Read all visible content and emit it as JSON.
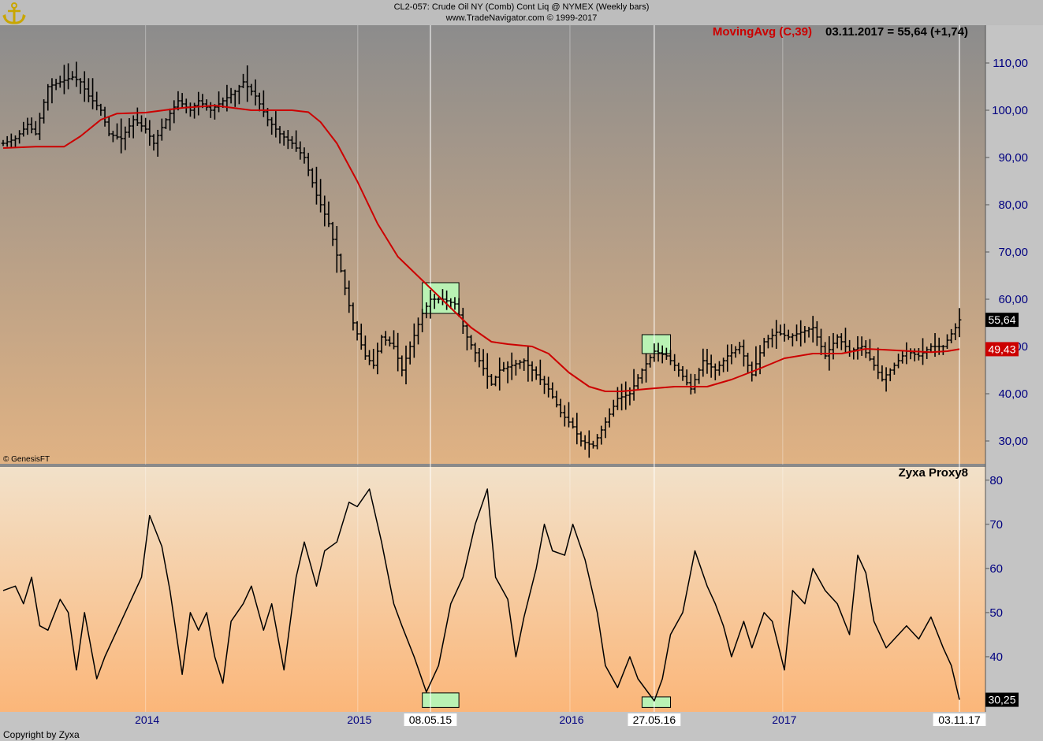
{
  "header": {
    "title": "CL2-057:  Crude Oil NY (Comb) Cont Liq @ NYMEX  (Weekly bars)",
    "subtitle": "www.TradeNavigator.com © 1999-2017"
  },
  "watermark": "© GenesisFT",
  "copyright": "Copyright by Zyxa",
  "colors": {
    "price_bg_top": "#8c8c8c",
    "price_bg_bottom": "#e0b283",
    "ind_bg_top": "#f2e1c9",
    "ind_bg_bottom": "#fbb679",
    "ma_line": "#cc0000",
    "highlight": "#b9f2b4",
    "axis_text": "#000080"
  },
  "chart_data": [
    {
      "type": "ohlc",
      "panel": "price",
      "legend": {
        "name": "MovingAvg (C,39)",
        "value_text": "03.11.2017 = 55,64 (+1,74)"
      },
      "ylim": [
        25,
        118
      ],
      "yticks": [
        "30,00",
        "40,00",
        "50,00",
        "60,00",
        "70,00",
        "80,00",
        "90,00",
        "100,00",
        "110,00"
      ],
      "last_price_label": "55,64",
      "ma_label": "49,43",
      "x_years": [
        "2014",
        "2015",
        "2016",
        "2017"
      ],
      "x_date_labels": [
        "08.05.15",
        "27.05.16",
        "03.11.17"
      ],
      "price_anchors": [
        [
          "2013-05-03",
          93
        ],
        [
          "2013-05-24",
          94
        ],
        [
          "2013-06-14",
          97
        ],
        [
          "2013-06-28",
          95
        ],
        [
          "2013-07-19",
          105
        ],
        [
          "2013-08-09",
          106
        ],
        [
          "2013-08-30",
          107
        ],
        [
          "2013-09-13",
          106
        ],
        [
          "2013-09-27",
          103
        ],
        [
          "2013-10-18",
          100
        ],
        [
          "2013-11-01",
          95
        ],
        [
          "2013-11-22",
          94
        ],
        [
          "2013-12-13",
          98
        ],
        [
          "2014-01-03",
          96
        ],
        [
          "2014-01-17",
          93
        ],
        [
          "2014-02-07",
          98
        ],
        [
          "2014-02-28",
          102
        ],
        [
          "2014-03-21",
          100
        ],
        [
          "2014-04-04",
          102
        ],
        [
          "2014-04-25",
          100
        ],
        [
          "2014-05-16",
          102
        ],
        [
          "2014-06-06",
          104
        ],
        [
          "2014-06-20",
          106
        ],
        [
          "2014-07-11",
          103
        ],
        [
          "2014-08-01",
          98
        ],
        [
          "2014-08-22",
          95
        ],
        [
          "2014-09-12",
          93
        ],
        [
          "2014-10-03",
          90
        ],
        [
          "2014-10-24",
          82
        ],
        [
          "2014-11-14",
          76
        ],
        [
          "2014-12-05",
          66
        ],
        [
          "2014-12-26",
          55
        ],
        [
          "2015-01-16",
          48
        ],
        [
          "2015-01-30",
          46
        ],
        [
          "2015-02-13",
          52
        ],
        [
          "2015-03-06",
          50
        ],
        [
          "2015-03-20",
          45
        ],
        [
          "2015-04-03",
          50
        ],
        [
          "2015-04-24",
          57
        ],
        [
          "2015-05-08",
          60
        ],
        [
          "2015-05-29",
          60
        ],
        [
          "2015-06-19",
          59
        ],
        [
          "2015-07-10",
          52
        ],
        [
          "2015-07-31",
          47
        ],
        [
          "2015-08-21",
          42
        ],
        [
          "2015-09-04",
          45
        ],
        [
          "2015-09-25",
          46
        ],
        [
          "2015-10-16",
          47
        ],
        [
          "2015-11-06",
          44
        ],
        [
          "2015-11-27",
          41
        ],
        [
          "2015-12-18",
          36
        ],
        [
          "2016-01-08",
          33
        ],
        [
          "2016-01-22",
          30
        ],
        [
          "2016-02-12",
          29
        ],
        [
          "2016-03-04",
          34
        ],
        [
          "2016-03-25",
          39
        ],
        [
          "2016-04-15",
          40
        ],
        [
          "2016-05-06",
          45
        ],
        [
          "2016-05-27",
          49
        ],
        [
          "2016-06-17",
          48
        ],
        [
          "2016-07-08",
          45
        ],
        [
          "2016-07-29",
          41
        ],
        [
          "2016-08-19",
          47
        ],
        [
          "2016-09-09",
          45
        ],
        [
          "2016-09-30",
          48
        ],
        [
          "2016-10-21",
          50
        ],
        [
          "2016-11-11",
          44
        ],
        [
          "2016-12-02",
          51
        ],
        [
          "2016-12-23",
          53
        ],
        [
          "2017-01-13",
          52
        ],
        [
          "2017-02-03",
          53
        ],
        [
          "2017-02-24",
          54
        ],
        [
          "2017-03-17",
          48
        ],
        [
          "2017-04-07",
          52
        ],
        [
          "2017-04-28",
          49
        ],
        [
          "2017-05-19",
          50
        ],
        [
          "2017-06-09",
          46
        ],
        [
          "2017-06-23",
          43
        ],
        [
          "2017-07-14",
          46
        ],
        [
          "2017-08-04",
          49
        ],
        [
          "2017-08-25",
          48
        ],
        [
          "2017-09-15",
          50
        ],
        [
          "2017-10-06",
          50
        ],
        [
          "2017-10-27",
          54
        ],
        [
          "2017-11-03",
          55.64
        ]
      ],
      "ma_anchors": [
        [
          "2013-05-03",
          92
        ],
        [
          "2013-06-28",
          92.3
        ],
        [
          "2013-08-16",
          92.3
        ],
        [
          "2013-09-13",
          94.5
        ],
        [
          "2013-10-18",
          98
        ],
        [
          "2013-11-15",
          99.3
        ],
        [
          "2014-01-03",
          99.5
        ],
        [
          "2014-03-07",
          100.5
        ],
        [
          "2014-05-02",
          101
        ],
        [
          "2014-07-04",
          100
        ],
        [
          "2014-09-12",
          100
        ],
        [
          "2014-10-10",
          99.6
        ],
        [
          "2014-10-31",
          97.5
        ],
        [
          "2014-11-28",
          93
        ],
        [
          "2015-01-02",
          85
        ],
        [
          "2015-02-06",
          76
        ],
        [
          "2015-03-13",
          69
        ],
        [
          "2015-04-24",
          64
        ],
        [
          "2015-06-05",
          59
        ],
        [
          "2015-07-17",
          54
        ],
        [
          "2015-08-21",
          51
        ],
        [
          "2015-09-18",
          50.5
        ],
        [
          "2015-10-30",
          50
        ],
        [
          "2015-11-27",
          48.5
        ],
        [
          "2016-01-01",
          44.5
        ],
        [
          "2016-02-05",
          41.5
        ],
        [
          "2016-03-04",
          40.5
        ],
        [
          "2016-04-01",
          40.5
        ],
        [
          "2016-05-13",
          41
        ],
        [
          "2016-07-01",
          41.5
        ],
        [
          "2016-08-26",
          41.5
        ],
        [
          "2016-10-07",
          43
        ],
        [
          "2016-11-18",
          45
        ],
        [
          "2017-01-06",
          47.5
        ],
        [
          "2017-02-24",
          48.5
        ],
        [
          "2017-04-14",
          48.5
        ],
        [
          "2017-05-26",
          49.5
        ],
        [
          "2017-06-30",
          49.3
        ],
        [
          "2017-08-11",
          49
        ],
        [
          "2017-09-15",
          48.8
        ],
        [
          "2017-10-13",
          49
        ],
        [
          "2017-11-03",
          49.43
        ]
      ],
      "highlight_ranges": [
        {
          "from": "2015-04-24",
          "to": "2015-06-26",
          "low": 57,
          "high": 63.5
        },
        {
          "from": "2016-05-06",
          "to": "2016-06-24",
          "low": 48.5,
          "high": 52.5
        }
      ]
    },
    {
      "type": "line",
      "panel": "indicator",
      "series_name": "Zyxa Proxy8",
      "ylim": [
        27.5,
        83
      ],
      "yticks": [
        "30",
        "40",
        "50",
        "60",
        "70",
        "80"
      ],
      "last_value_label": "30,25",
      "anchors": [
        [
          "2013-05-03",
          55
        ],
        [
          "2013-05-24",
          56
        ],
        [
          "2013-06-07",
          52
        ],
        [
          "2013-06-21",
          58
        ],
        [
          "2013-07-05",
          47
        ],
        [
          "2013-07-19",
          46
        ],
        [
          "2013-08-09",
          53
        ],
        [
          "2013-08-23",
          50
        ],
        [
          "2013-09-06",
          37
        ],
        [
          "2013-09-20",
          50
        ],
        [
          "2013-10-11",
          35
        ],
        [
          "2013-10-25",
          40
        ],
        [
          "2013-11-15",
          46
        ],
        [
          "2013-12-06",
          52
        ],
        [
          "2013-12-27",
          58
        ],
        [
          "2014-01-10",
          72
        ],
        [
          "2014-01-31",
          65
        ],
        [
          "2014-02-14",
          55
        ],
        [
          "2014-03-07",
          36
        ],
        [
          "2014-03-21",
          50
        ],
        [
          "2014-04-04",
          46
        ],
        [
          "2014-04-18",
          50
        ],
        [
          "2014-05-02",
          40
        ],
        [
          "2014-05-16",
          34
        ],
        [
          "2014-05-30",
          48
        ],
        [
          "2014-06-20",
          52
        ],
        [
          "2014-07-04",
          56
        ],
        [
          "2014-07-25",
          46
        ],
        [
          "2014-08-08",
          52
        ],
        [
          "2014-08-29",
          37
        ],
        [
          "2014-09-19",
          58
        ],
        [
          "2014-10-03",
          66
        ],
        [
          "2014-10-24",
          56
        ],
        [
          "2014-11-07",
          64
        ],
        [
          "2014-11-28",
          66
        ],
        [
          "2014-12-19",
          75
        ],
        [
          "2015-01-02",
          74
        ],
        [
          "2015-01-23",
          78
        ],
        [
          "2015-02-13",
          66
        ],
        [
          "2015-03-06",
          52
        ],
        [
          "2015-03-20",
          47
        ],
        [
          "2015-04-10",
          40
        ],
        [
          "2015-05-01",
          32
        ],
        [
          "2015-05-22",
          38
        ],
        [
          "2015-06-12",
          52
        ],
        [
          "2015-07-03",
          58
        ],
        [
          "2015-07-24",
          70
        ],
        [
          "2015-08-14",
          78
        ],
        [
          "2015-08-28",
          58
        ],
        [
          "2015-09-18",
          53
        ],
        [
          "2015-10-02",
          40
        ],
        [
          "2015-10-16",
          49
        ],
        [
          "2015-11-06",
          60
        ],
        [
          "2015-11-20",
          70
        ],
        [
          "2015-12-04",
          64
        ],
        [
          "2015-12-25",
          63
        ],
        [
          "2016-01-08",
          70
        ],
        [
          "2016-01-29",
          62
        ],
        [
          "2016-02-19",
          50
        ],
        [
          "2016-03-04",
          38
        ],
        [
          "2016-03-25",
          33
        ],
        [
          "2016-04-15",
          40
        ],
        [
          "2016-04-29",
          35
        ],
        [
          "2016-05-27",
          30
        ],
        [
          "2016-06-10",
          35
        ],
        [
          "2016-06-24",
          45
        ],
        [
          "2016-07-15",
          50
        ],
        [
          "2016-08-05",
          64
        ],
        [
          "2016-08-26",
          56
        ],
        [
          "2016-09-09",
          52
        ],
        [
          "2016-09-23",
          47
        ],
        [
          "2016-10-07",
          40
        ],
        [
          "2016-10-28",
          48
        ],
        [
          "2016-11-11",
          42
        ],
        [
          "2016-12-02",
          50
        ],
        [
          "2016-12-16",
          48
        ],
        [
          "2017-01-06",
          37
        ],
        [
          "2017-01-20",
          55
        ],
        [
          "2017-02-10",
          52
        ],
        [
          "2017-02-24",
          60
        ],
        [
          "2017-03-17",
          55
        ],
        [
          "2017-04-07",
          52
        ],
        [
          "2017-04-28",
          45
        ],
        [
          "2017-05-12",
          63
        ],
        [
          "2017-05-26",
          59
        ],
        [
          "2017-06-09",
          48
        ],
        [
          "2017-06-30",
          42
        ],
        [
          "2017-07-21",
          45
        ],
        [
          "2017-08-04",
          47
        ],
        [
          "2017-08-25",
          44
        ],
        [
          "2017-09-15",
          49
        ],
        [
          "2017-10-06",
          42
        ],
        [
          "2017-10-20",
          38
        ],
        [
          "2017-11-03",
          30.25
        ]
      ],
      "highlight_ranges": [
        {
          "from": "2015-04-24",
          "to": "2015-06-26",
          "low": 28.5,
          "high": 31.8
        },
        {
          "from": "2016-05-06",
          "to": "2016-06-24",
          "low": 28.5,
          "high": 30.9
        }
      ]
    }
  ]
}
